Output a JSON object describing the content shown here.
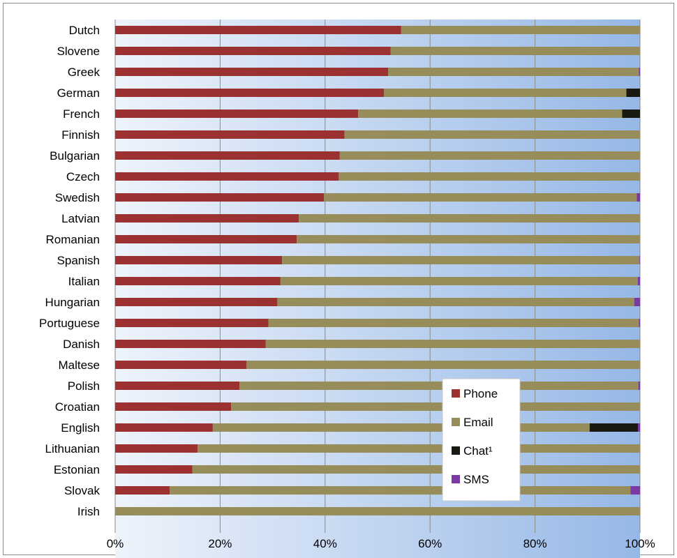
{
  "chart_data": {
    "type": "bar",
    "orientation": "horizontal",
    "stacked": "percent",
    "categories": [
      "Dutch",
      "Slovene",
      "Greek",
      "German",
      "French",
      "Finnish",
      "Bulgarian",
      "Czech",
      "Swedish",
      "Latvian",
      "Romanian",
      "Spanish",
      "Italian",
      "Hungarian",
      "Portuguese",
      "Danish",
      "Maltese",
      "Polish",
      "Croatian",
      "English",
      "Lithuanian",
      "Estonian",
      "Slovak",
      "Irish"
    ],
    "series": [
      {
        "name": "Phone",
        "color": "#9b3131",
        "values": [
          54.5,
          52.5,
          52,
          51.2,
          46.3,
          43.7,
          42.8,
          42.6,
          39.8,
          35,
          34.6,
          31.8,
          31.5,
          30.9,
          29.2,
          28.7,
          25,
          23.7,
          22.1,
          18.6,
          15.7,
          14.7,
          10.4,
          0
        ]
      },
      {
        "name": "Email",
        "color": "#968d5a",
        "values": [
          45.5,
          47.5,
          47.8,
          46.2,
          50.3,
          56.3,
          57.2,
          57.4,
          59.6,
          65,
          65.4,
          68.1,
          68.1,
          68.0,
          70.6,
          71.3,
          75,
          76.0,
          77.9,
          71.8,
          84.3,
          85.3,
          87.8,
          100
        ]
      },
      {
        "name": "Chat¹",
        "color": "#1a1a12",
        "values": [
          0,
          0,
          0,
          2.6,
          3.4,
          0,
          0,
          0,
          0,
          0,
          0,
          0,
          0,
          0,
          0,
          0,
          0,
          0,
          0,
          9.2,
          0,
          0,
          0,
          0
        ]
      },
      {
        "name": "SMS",
        "color": "#7b3aa3",
        "values": [
          0,
          0,
          0.2,
          0,
          0,
          0,
          0,
          0,
          0.6,
          0,
          0,
          0.1,
          0.4,
          1.1,
          0.2,
          0,
          0,
          0.3,
          0,
          0.4,
          0,
          0,
          1.8,
          0
        ]
      }
    ],
    "xlim": [
      0,
      100
    ],
    "xticks": [
      "0%",
      "20%",
      "40%",
      "60%",
      "80%",
      "100%"
    ],
    "grid": true,
    "legend_position": "bottom-right"
  }
}
